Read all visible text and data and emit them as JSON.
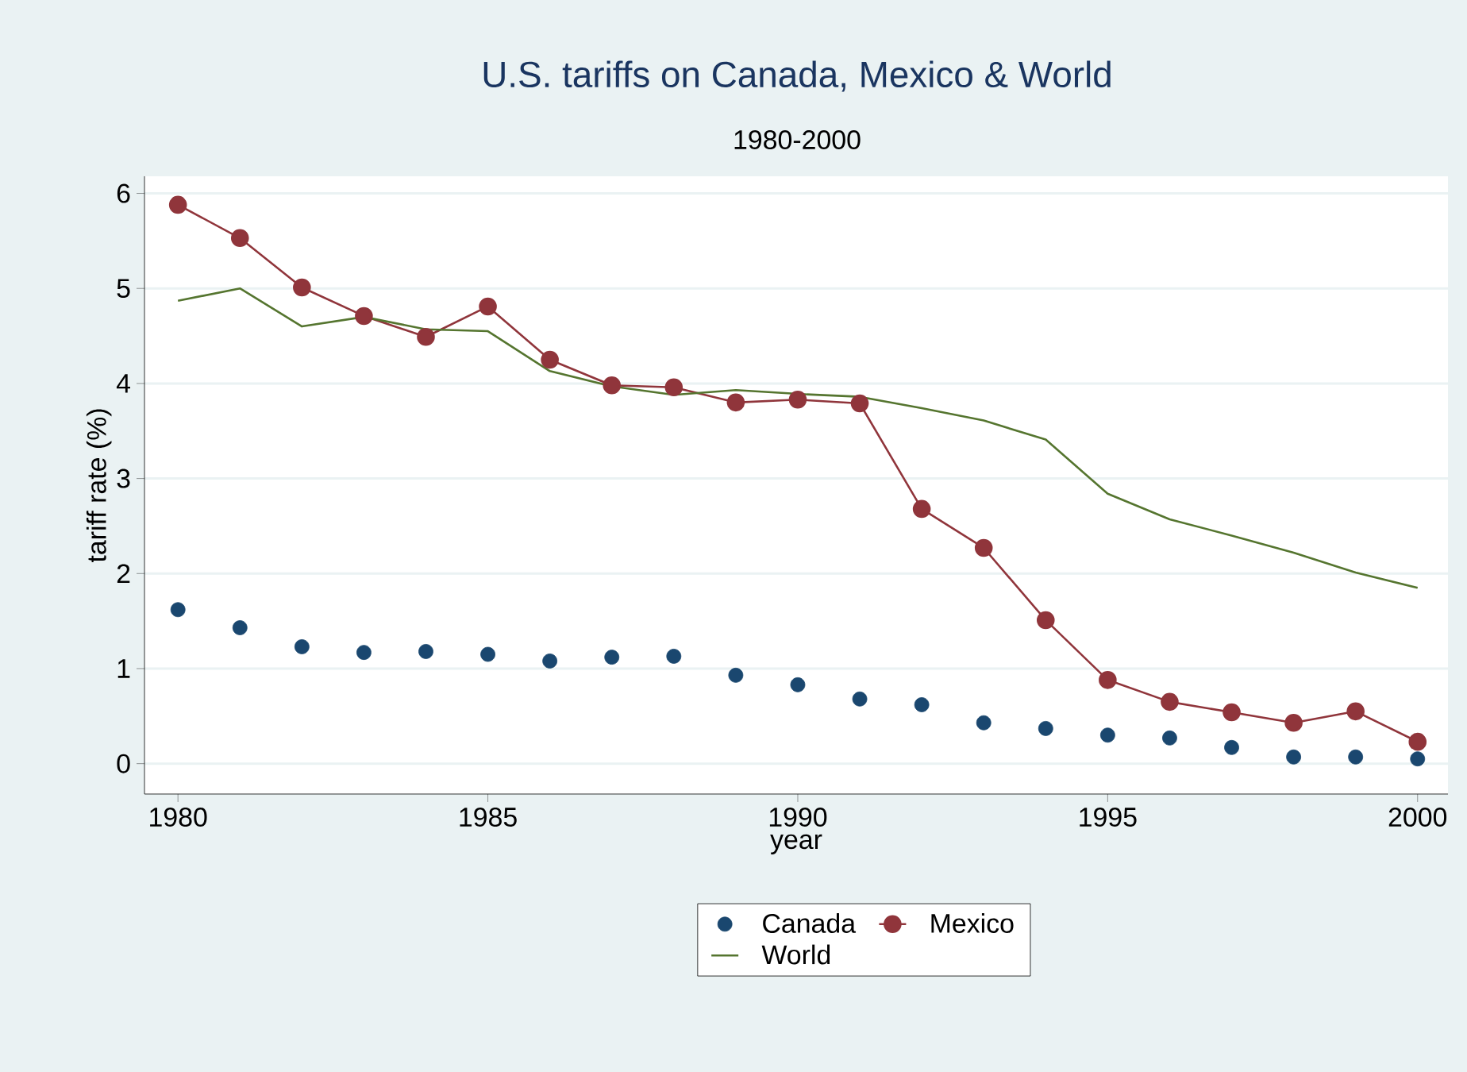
{
  "chart_data": {
    "type": "line",
    "title": "U.S. tariffs on Canada, Mexico & World",
    "subtitle": "1980-2000",
    "xlabel": "year",
    "ylabel": "tariff rate (%)",
    "x": [
      1980,
      1981,
      1982,
      1983,
      1984,
      1985,
      1986,
      1987,
      1988,
      1989,
      1990,
      1991,
      1992,
      1993,
      1994,
      1995,
      1996,
      1997,
      1998,
      1999,
      2000
    ],
    "series": [
      {
        "name": "Canada",
        "type": "scatter",
        "marker": "circle",
        "color": "#1a476f",
        "values": [
          1.62,
          1.43,
          1.23,
          1.17,
          1.18,
          1.15,
          1.08,
          1.12,
          1.13,
          0.93,
          0.83,
          0.68,
          0.62,
          0.43,
          0.37,
          0.3,
          0.27,
          0.17,
          0.07,
          0.07,
          0.05
        ]
      },
      {
        "name": "Mexico",
        "marker": "circle",
        "color": "#90353b",
        "values": [
          5.88,
          5.53,
          5.01,
          4.71,
          4.49,
          4.81,
          4.25,
          3.98,
          3.96,
          3.8,
          3.83,
          3.79,
          2.68,
          2.27,
          1.51,
          0.88,
          0.65,
          0.54,
          0.43,
          0.55,
          0.23
        ]
      },
      {
        "name": "World",
        "marker": "none",
        "color": "#55752f",
        "values": [
          4.87,
          5.0,
          4.6,
          4.7,
          4.57,
          4.55,
          4.13,
          3.97,
          3.88,
          3.93,
          3.89,
          3.86,
          3.74,
          3.61,
          3.41,
          2.84,
          2.57,
          2.4,
          2.22,
          2.01,
          1.85
        ]
      }
    ],
    "xlim": [
      1979.46,
      2000.49
    ],
    "ylim": [
      -0.32,
      6.18
    ],
    "xticks": [
      1980,
      1985,
      1990,
      1995,
      2000
    ],
    "yticks": [
      0,
      1,
      2,
      3,
      4,
      5,
      6
    ],
    "grid": "y",
    "legend": "bottom"
  }
}
